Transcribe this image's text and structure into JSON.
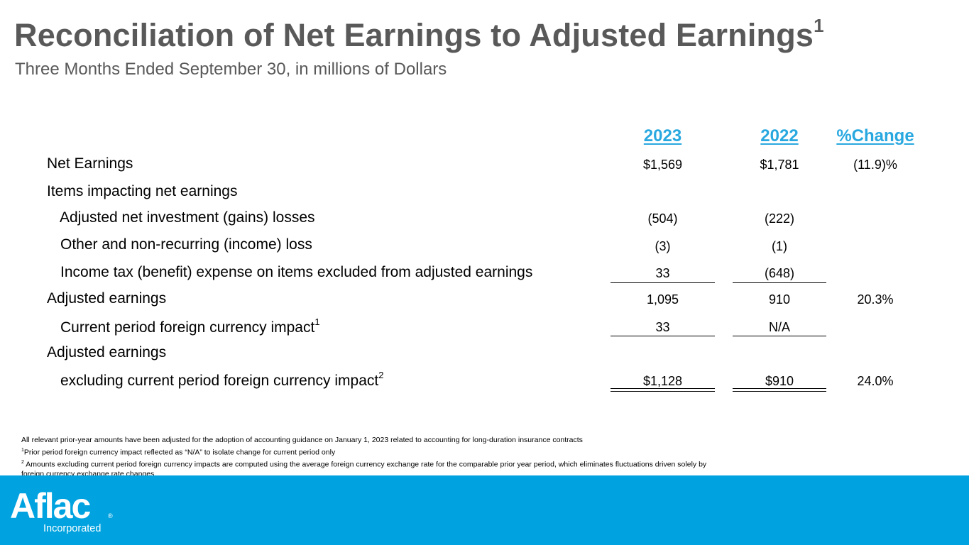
{
  "title": "Reconciliation of Net Earnings to Adjusted Earnings",
  "title_sup": "1",
  "subtitle": "Three Months Ended September 30, in millions of Dollars",
  "columns": [
    "2023",
    "2022",
    "%Change"
  ],
  "rows": [
    {
      "label": "Net Earnings",
      "v2023": "$1,569",
      "v2022": "$1,781",
      "change": "(11.9)%"
    },
    {
      "label": "Items impacting net earnings",
      "v2023": "",
      "v2022": "",
      "change": ""
    },
    {
      "label": "Adjusted net investment (gains) losses",
      "v2023": "(504)",
      "v2022": "(222)",
      "change": ""
    },
    {
      "label": "Other and non-recurring (income) loss",
      "v2023": "(3)",
      "v2022": "(1)",
      "change": ""
    },
    {
      "label": "Income tax (benefit) expense on items excluded from adjusted earnings",
      "v2023": "33",
      "v2022": "(648)",
      "change": ""
    },
    {
      "label": "Adjusted earnings",
      "v2023": "1,095",
      "v2022": "910",
      "change": "20.3%"
    },
    {
      "label": "Current period foreign currency impact",
      "sup": "1",
      "v2023": "33",
      "v2022": "N/A",
      "change": ""
    },
    {
      "label": "Adjusted earnings",
      "v2023": "",
      "v2022": "",
      "change": ""
    },
    {
      "label": "excluding current period foreign currency impact",
      "sup": "2",
      "v2023": "$1,128",
      "v2022": "$910",
      "change": "24.0%"
    }
  ],
  "footnotes": {
    "general": "All relevant prior-year amounts have been adjusted for the adoption of accounting guidance on January 1, 2023 related to accounting for long-duration insurance contracts",
    "note1_mark": "1",
    "note1": "Prior period foreign currency impact reflected as “N/A” to isolate change for current period only",
    "note2_mark": "2",
    "note2": " Amounts excluding current period foreign currency impacts are computed using the average foreign currency exchange rate for the comparable prior year period, which eliminates fluctuations driven solely by foreign currency exchange rate changes."
  },
  "brand": {
    "logo_text": "Aflac",
    "registered": "®",
    "incorporated": "Incorporated",
    "footer_color": "#00a3e0",
    "accent_color": "#29a8e0",
    "title_color": "#595959"
  }
}
